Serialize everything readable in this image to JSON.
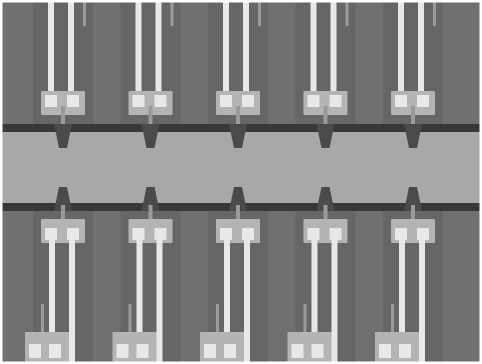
{
  "image": {
    "subject": "grayscale-micrograph",
    "colors": {
      "background": "#707070",
      "dark_column": "#5e5e5e",
      "center_band": "#a8a8a8",
      "rail": "#383838",
      "pad": "#b4b4b4",
      "lead": "#e8e8e8",
      "faint_line": "#9a9a9a",
      "border": "#ffffff"
    },
    "device_columns": 5
  }
}
